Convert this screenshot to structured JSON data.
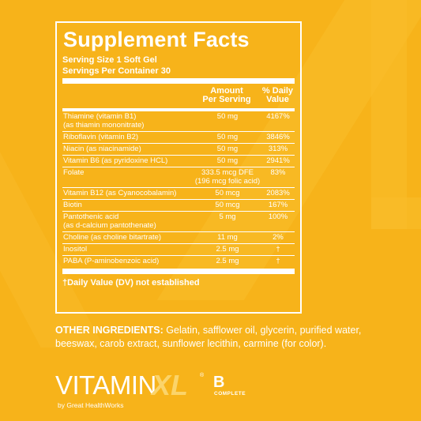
{
  "facts": {
    "title": "Supplement Facts",
    "serving_size": "Serving Size 1 Soft Gel",
    "servings_per_container": "Servings Per Container 30",
    "col_amount_l1": "Amount",
    "col_amount_l2": "Per Serving",
    "col_dv_l1": "% Daily",
    "col_dv_l2": "Value",
    "rows": [
      {
        "name": "Thiamine (vitamin B1)",
        "name2": "(as thiamin mononitrate)",
        "amount": "50 mg",
        "amount2": "",
        "dv": "4167%"
      },
      {
        "name": "Riboflavin (vitamin B2)",
        "name2": "",
        "amount": "50 mg",
        "amount2": "",
        "dv": "3846%"
      },
      {
        "name": "Niacin (as niacinamide)",
        "name2": "",
        "amount": "50 mg",
        "amount2": "",
        "dv": "313%"
      },
      {
        "name": "Vitamin B6 (as pyridoxine HCL)",
        "name2": "",
        "amount": "50 mg",
        "amount2": "",
        "dv": "2941%"
      },
      {
        "name": "Folate",
        "name2": "",
        "amount": "333.5 mcg DFE",
        "amount2": "(196 mcg folic acid)",
        "dv": "83%"
      },
      {
        "name": "Vitamin B12 (as Cyanocobalamin)",
        "name2": "",
        "amount": "50 mcg",
        "amount2": "",
        "dv": "2083%"
      },
      {
        "name": "Biotin",
        "name2": "",
        "amount": "50 mcg",
        "amount2": "",
        "dv": "167%"
      },
      {
        "name": "Pantothenic acid",
        "name2": "(as d-calcium pantothenate)",
        "amount": "5 mg",
        "amount2": "",
        "dv": "100%"
      },
      {
        "name": "Choline (as choline bitartrate)",
        "name2": "",
        "amount": "11 mg",
        "amount2": "",
        "dv": "2%"
      },
      {
        "name": "Inositol",
        "name2": "",
        "amount": "2.5 mg",
        "amount2": "",
        "dv": "†"
      },
      {
        "name": "PABA (P-aminobenzoic acid)",
        "name2": "",
        "amount": "2.5 mg",
        "amount2": "",
        "dv": "†"
      }
    ],
    "footnote": "†Daily Value (DV) not established"
  },
  "ingredients": {
    "label": "OTHER INGREDIENTS:",
    "text": " Gelatin, safflower oil, glycerin, purified water, beeswax, carob extract, sunflower lecithin, carmine (for color)."
  },
  "logo": {
    "vitamin": "VITAMIN",
    "xl": "XL",
    "reg": "®",
    "by": "by Great HealthWorks",
    "b": "B",
    "complete": "COMPLETE"
  },
  "colors": {
    "background": "#f7b31a",
    "text": "#ffffff",
    "accent": "#fbd46a"
  }
}
